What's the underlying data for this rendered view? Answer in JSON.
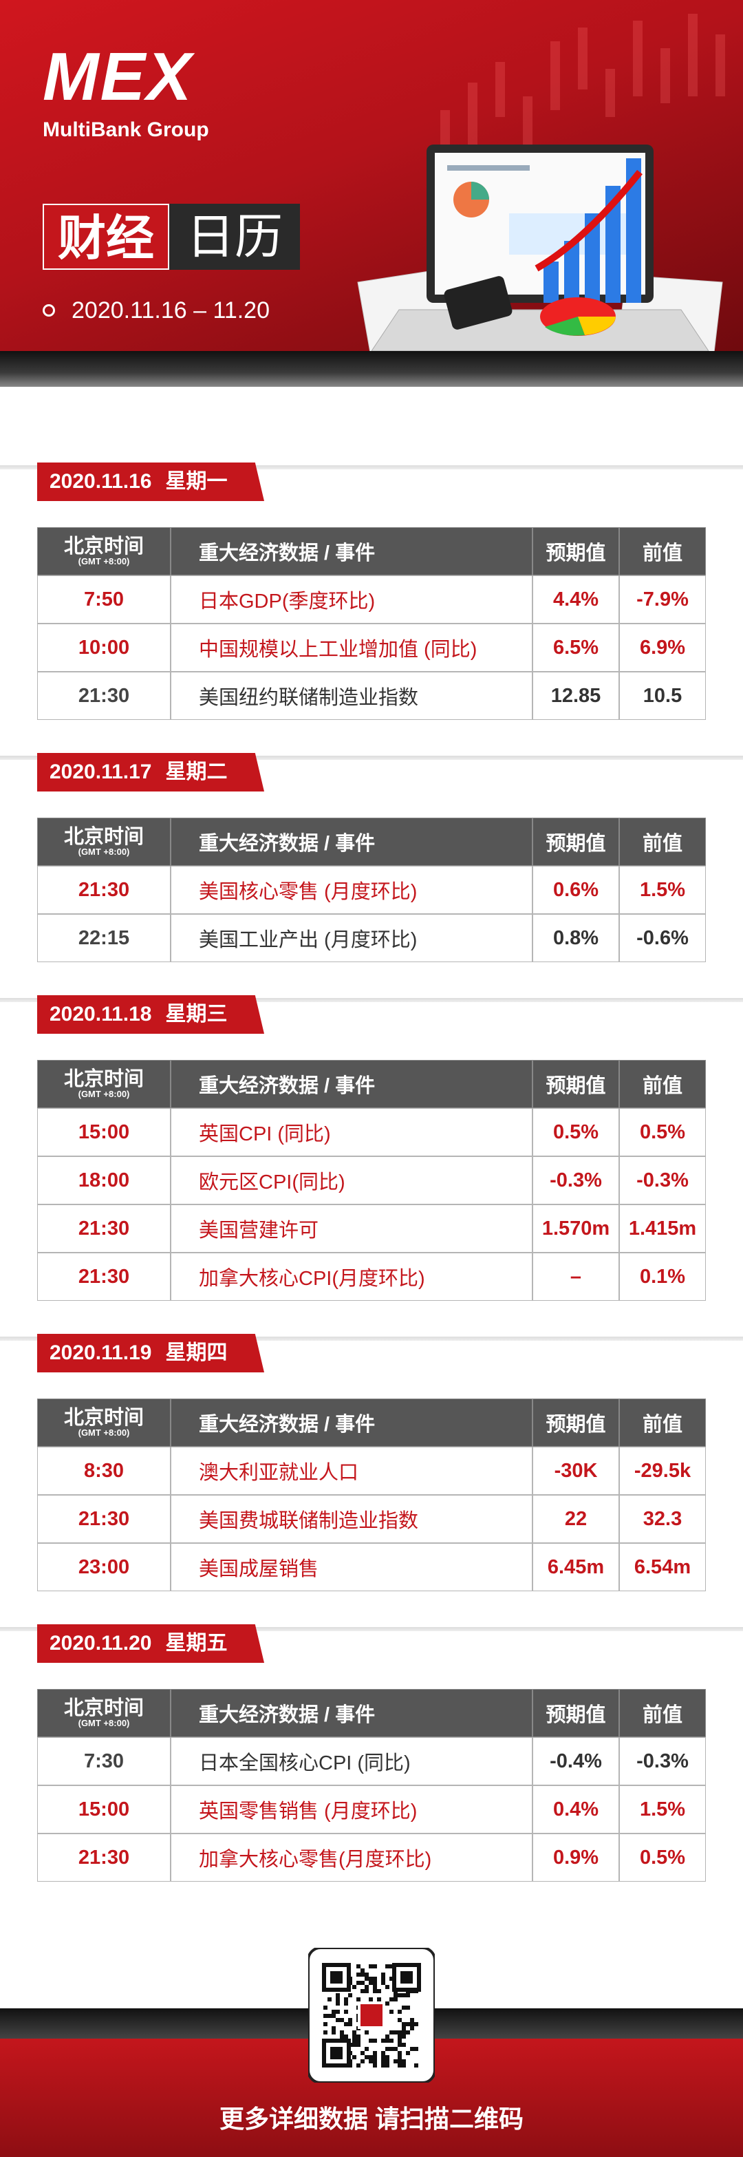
{
  "header": {
    "logo": "MEX",
    "brand": "MultiBank Group",
    "title_a": "财经",
    "title_b": "日历",
    "date_range": "2020.11.16 – 11.20"
  },
  "table_header": {
    "time": "北京时间",
    "timezone": "(GMT +8:00)",
    "event": "重大经济数据 / 事件",
    "forecast": "预期值",
    "previous": "前值"
  },
  "days": [
    {
      "date": "2020.11.16",
      "weekday": "星期一",
      "rows": [
        {
          "time": "7:50",
          "event": "日本GDP(季度环比)",
          "forecast": "4.4%",
          "previous": "-7.9%",
          "color": "#c4161c"
        },
        {
          "time": "10:00",
          "event": "中国规模以上工业增加值 (同比)",
          "forecast": "6.5%",
          "previous": "6.9%",
          "color": "#c4161c"
        },
        {
          "time": "21:30",
          "event": "美国纽约联储制造业指数",
          "forecast": "12.85",
          "previous": "10.5",
          "color": "#333333"
        }
      ]
    },
    {
      "date": "2020.11.17",
      "weekday": "星期二",
      "rows": [
        {
          "time": "21:30",
          "event": "美国核心零售 (月度环比)",
          "forecast": "0.6%",
          "previous": "1.5%",
          "color": "#c4161c"
        },
        {
          "time": "22:15",
          "event": "美国工业产出 (月度环比)",
          "forecast": "0.8%",
          "previous": "-0.6%",
          "color": "#333333"
        }
      ]
    },
    {
      "date": "2020.11.18",
      "weekday": "星期三",
      "rows": [
        {
          "time": "15:00",
          "event": "英国CPI (同比)",
          "forecast": "0.5%",
          "previous": "0.5%",
          "color": "#c4161c"
        },
        {
          "time": "18:00",
          "event": "欧元区CPI(同比)",
          "forecast": "-0.3%",
          "previous": "-0.3%",
          "color": "#c4161c"
        },
        {
          "time": "21:30",
          "event": "美国营建许可",
          "forecast": "1.570m",
          "previous": "1.415m",
          "color": "#c4161c"
        },
        {
          "time": "21:30",
          "event": "加拿大核心CPI(月度环比)",
          "forecast": "–",
          "previous": "0.1%",
          "color": "#c4161c"
        }
      ]
    },
    {
      "date": "2020.11.19",
      "weekday": "星期四",
      "rows": [
        {
          "time": "8:30",
          "event": "澳大利亚就业人口",
          "forecast": "-30K",
          "previous": "-29.5k",
          "color": "#c4161c"
        },
        {
          "time": "21:30",
          "event": "美国费城联储制造业指数",
          "forecast": "22",
          "previous": "32.3",
          "color": "#c4161c"
        },
        {
          "time": "23:00",
          "event": "美国成屋销售",
          "forecast": "6.45m",
          "previous": "6.54m",
          "color": "#c4161c"
        }
      ]
    },
    {
      "date": "2020.11.20",
      "weekday": "星期五",
      "rows": [
        {
          "time": "7:30",
          "event": "日本全国核心CPI (同比)",
          "forecast": "-0.4%",
          "previous": "-0.3%",
          "color": "#333333"
        },
        {
          "time": "15:00",
          "event": "英国零售销售 (月度环比)",
          "forecast": "0.4%",
          "previous": "1.5%",
          "color": "#c4161c"
        },
        {
          "time": "21:30",
          "event": "加拿大核心零售(月度环比)",
          "forecast": "0.9%",
          "previous": "0.5%",
          "color": "#c4161c"
        }
      ]
    }
  ],
  "footer": {
    "cta": "更多详细数据 请扫描二维码"
  }
}
